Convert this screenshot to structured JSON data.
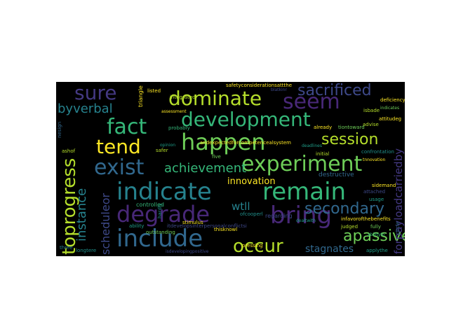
{
  "words": [
    {
      "text": "indicate",
      "color": "#26828e"
    },
    {
      "text": "remain",
      "color": "#35b779"
    },
    {
      "text": "bring",
      "color": "#482878"
    },
    {
      "text": "include",
      "color": "#31688e"
    },
    {
      "text": "happen",
      "color": "#6ece58"
    },
    {
      "text": "degrade",
      "color": "#482878"
    },
    {
      "text": "experiment",
      "color": "#6ece58"
    },
    {
      "text": "development",
      "color": "#35b779"
    },
    {
      "text": "dominate",
      "color": "#b5de2b"
    },
    {
      "text": "exist",
      "color": "#31688e"
    },
    {
      "text": "fact",
      "color": "#35b779"
    },
    {
      "text": "seem",
      "color": "#482878"
    },
    {
      "text": "tend",
      "color": "#fde725"
    },
    {
      "text": "occur",
      "color": "#b5de2b"
    },
    {
      "text": "sure",
      "color": "#443983"
    },
    {
      "text": "sacrificed",
      "color": "#3e4989"
    },
    {
      "text": "session",
      "color": "#b5de2b"
    },
    {
      "text": "secondary",
      "color": "#31688e"
    },
    {
      "text": "byverbal",
      "color": "#26828e"
    },
    {
      "text": "achievement",
      "color": "#35b779"
    },
    {
      "text": "apassive",
      "color": "#6ece58"
    },
    {
      "text": "wtll",
      "color": "#26828e"
    },
    {
      "text": "stagnates",
      "color": "#31688e"
    },
    {
      "text": "innovation",
      "color": "#fde725"
    },
    {
      "text": "destructive",
      "color": "#31688e"
    },
    {
      "text": "toprogress",
      "color": "#b5de2b"
    },
    {
      "text": "instance",
      "color": "#26828e"
    },
    {
      "text": "scheduleor",
      "color": "#3e4989"
    },
    {
      "text": "forpayloadcarriedby",
      "color": "#443983"
    },
    {
      "text": "ofcooperl",
      "color": "#21918c"
    },
    {
      "text": "regarding",
      "color": "#3e4989"
    },
    {
      "text": "controlled",
      "color": "#35b779"
    },
    {
      "text": "ability",
      "color": "#1f9e89"
    },
    {
      "text": "outstanding",
      "color": "#6ece58"
    },
    {
      "text": "itdevelopsinterpersonalconflictsi",
      "color": "#3e4989"
    },
    {
      "text": "integrated",
      "color": "#b5de2b"
    },
    {
      "text": "listed",
      "color": "#fde725"
    },
    {
      "text": "triangle",
      "color": "#fde725"
    },
    {
      "text": "safetyconsiderationsattthe",
      "color": "#fde725"
    },
    {
      "text": "andexpectedforcompetencealsystem",
      "color": "#fde725"
    },
    {
      "text": "infavorofthebenefits",
      "color": "#fde725"
    },
    {
      "text": "judged",
      "color": "#b5de2b"
    },
    {
      "text": "fully",
      "color": "#6ece58"
    },
    {
      "text": "pressing",
      "color": "#fde725"
    },
    {
      "text": "already",
      "color": "#fde725"
    },
    {
      "text": "deficiency",
      "color": "#fde725"
    },
    {
      "text": "advise",
      "color": "#b5de2b"
    },
    {
      "text": "confrontation",
      "color": "#21918c"
    },
    {
      "text": "attached",
      "color": "#3e4989"
    },
    {
      "text": "initial",
      "color": "#b5de2b"
    },
    {
      "text": "applythe",
      "color": "#1f9e89"
    },
    {
      "text": "longtere",
      "color": "#21918c"
    },
    {
      "text": "three",
      "color": "#26828e"
    },
    {
      "text": "safer",
      "color": "#b5de2b"
    },
    {
      "text": "hardly",
      "color": "#21918c"
    },
    {
      "text": "stimulus",
      "color": "#fde725"
    },
    {
      "text": "thisknowl",
      "color": "#fde725"
    },
    {
      "text": "probably",
      "color": "#35b779"
    },
    {
      "text": "isdevelopingpositive",
      "color": "#3e4989"
    },
    {
      "text": "tiontoward",
      "color": "#6ece58"
    },
    {
      "text": "nesign",
      "color": "#31688e"
    },
    {
      "text": "ashof",
      "color": "#b5de2b"
    },
    {
      "text": "five",
      "color": "#6ece58"
    },
    {
      "text": "circle",
      "color": "#31688e"
    },
    {
      "text": "usage",
      "color": "#1f9e89"
    },
    {
      "text": "deadlines",
      "color": "#1f9e89"
    },
    {
      "text": "dealtwith",
      "color": "#1f9e89"
    },
    {
      "text": "opinion",
      "color": "#1f9e89"
    },
    {
      "text": "assessment",
      "color": "#fde725"
    },
    {
      "text": "isbade",
      "color": "#b5de2b"
    },
    {
      "text": "attitudeg",
      "color": "#fde725"
    },
    {
      "text": "blatkinr",
      "color": "#3e4989"
    },
    {
      "text": "tnnovation",
      "color": "#fde725"
    },
    {
      "text": "indicates",
      "color": "#6ece58"
    },
    {
      "text": "sidemand",
      "color": "#fde725"
    },
    {
      "text": "abilityto",
      "color": "#35b779"
    }
  ]
}
